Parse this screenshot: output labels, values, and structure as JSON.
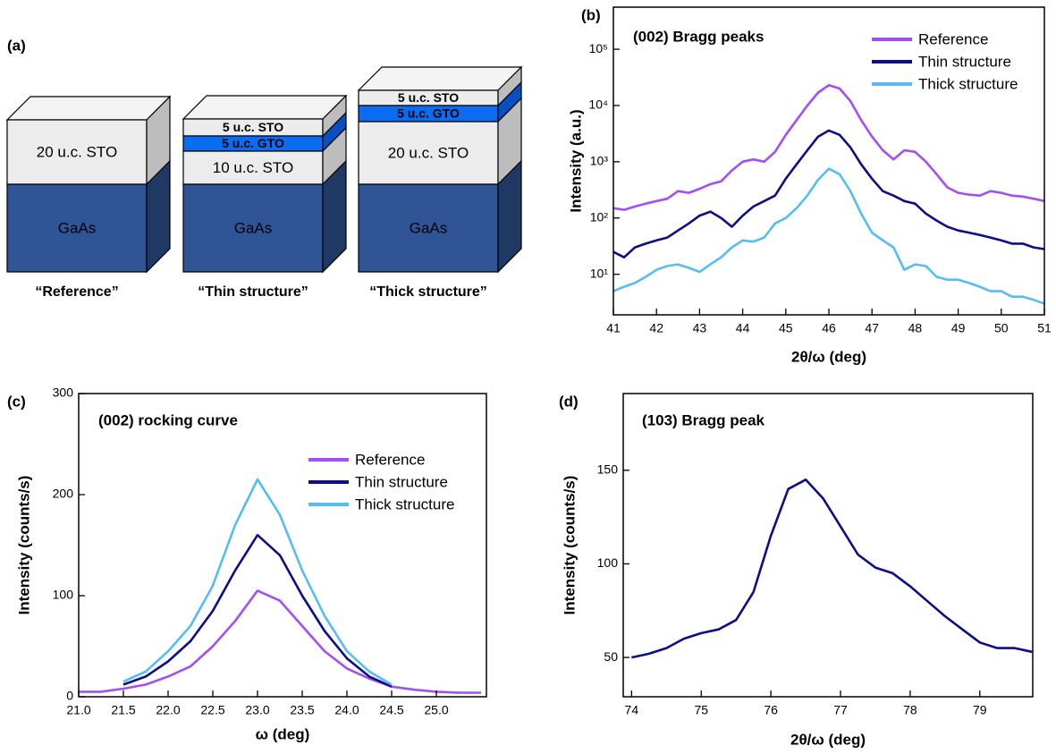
{
  "schematic": {
    "panel_label": "(a)",
    "samples": [
      {
        "layers": [
          "20 u.c. STO",
          "GaAs"
        ],
        "caption": "“Reference”"
      },
      {
        "layers": [
          "5 u.c. STO",
          "5 u.c. GTO",
          "10 u.c. STO",
          "GaAs"
        ],
        "caption": "“Thin structure”"
      },
      {
        "layers": [
          "5 u.c. STO",
          "5 u.c. GTO",
          "20 u.c. STO",
          "GaAs"
        ],
        "caption": "“Thick structure”"
      }
    ]
  },
  "chart_data": [
    {
      "type": "line",
      "panel_label": "(b)",
      "title": "(002) Bragg peaks",
      "x_label": "2θ/ω (deg)",
      "y_label": "Intensity (a.u.)",
      "log_y": true,
      "legend": "upper right",
      "x": [
        41,
        41.25,
        41.5,
        41.75,
        42,
        42.25,
        42.5,
        42.75,
        43,
        43.25,
        43.5,
        43.75,
        44,
        44.25,
        44.5,
        44.75,
        45,
        45.25,
        45.5,
        45.75,
        46,
        46.25,
        46.5,
        46.75,
        47,
        47.25,
        47.5,
        47.75,
        48,
        48.25,
        48.5,
        48.75,
        49,
        49.25,
        49.5,
        49.75,
        50,
        50.25,
        50.5,
        50.75,
        51
      ],
      "series": [
        {
          "name": "Reference",
          "color": "#a24ff5",
          "values": [
            150,
            140,
            160,
            180,
            200,
            220,
            300,
            280,
            330,
            400,
            450,
            700,
            1000,
            1100,
            1000,
            1500,
            3000,
            5500,
            10000,
            17000,
            23000,
            20000,
            12000,
            5500,
            2800,
            1600,
            1100,
            1600,
            1500,
            1000,
            600,
            350,
            280,
            260,
            250,
            300,
            280,
            250,
            240,
            220,
            200
          ]
        },
        {
          "name": "Thin structure",
          "color": "#0d0d8a",
          "values": [
            25,
            20,
            30,
            35,
            40,
            45,
            60,
            80,
            110,
            130,
            100,
            70,
            110,
            160,
            200,
            250,
            500,
            900,
            1600,
            2800,
            3600,
            3000,
            1800,
            900,
            500,
            300,
            250,
            200,
            180,
            120,
            90,
            70,
            60,
            55,
            50,
            45,
            40,
            35,
            35,
            30,
            28
          ]
        },
        {
          "name": "Thick structure",
          "color": "#55bdf5",
          "values": [
            5,
            6,
            7,
            9,
            12,
            14,
            15,
            13,
            11,
            15,
            20,
            30,
            40,
            38,
            45,
            80,
            100,
            150,
            250,
            480,
            750,
            600,
            300,
            120,
            55,
            40,
            30,
            12,
            15,
            14,
            9,
            8,
            8,
            7,
            6,
            5,
            5,
            4,
            4,
            3.5,
            3
          ]
        }
      ],
      "xlim": [
        41,
        51
      ],
      "xticks": [
        41,
        42,
        43,
        44,
        45,
        46,
        47,
        48,
        49,
        50,
        51
      ],
      "ylim": [
        1.9,
        560000
      ],
      "yticks": [
        {
          "value": 10,
          "label": "10¹"
        },
        {
          "value": 100,
          "label": "10²"
        },
        {
          "value": 1000,
          "label": "10³"
        },
        {
          "value": 10000,
          "label": "10⁴"
        },
        {
          "value": 100000,
          "label": "10⁵"
        }
      ]
    },
    {
      "type": "line",
      "panel_label": "(c)",
      "title": "(002) rocking curve",
      "x_label": "ω (deg)",
      "y_label": "Intensity (counts/s)",
      "log_y": false,
      "legend": "upper right",
      "x": [
        21,
        21.25,
        21.5,
        21.75,
        22,
        22.25,
        22.5,
        22.75,
        23,
        23.25,
        23.5,
        23.75,
        24,
        24.25,
        24.5,
        24.75,
        25,
        25.25,
        25.5
      ],
      "series": [
        {
          "name": "Reference",
          "color": "#a24ff5",
          "values": [
            5,
            5,
            8,
            12,
            20,
            30,
            50,
            75,
            105,
            95,
            70,
            45,
            28,
            18,
            10,
            7,
            5,
            4,
            4
          ]
        },
        {
          "name": "Thin structure",
          "color": "#0d0d8a",
          "values": [
            null,
            null,
            12,
            20,
            35,
            55,
            85,
            125,
            160,
            140,
            100,
            65,
            38,
            20,
            10,
            null,
            null,
            null,
            null
          ]
        },
        {
          "name": "Thick structure",
          "color": "#55bdf5",
          "values": [
            null,
            null,
            15,
            25,
            45,
            70,
            110,
            170,
            215,
            180,
            125,
            80,
            45,
            25,
            12,
            null,
            null,
            null,
            null
          ]
        }
      ],
      "xlim": [
        21,
        25.56
      ],
      "xticks": [
        {
          "value": 21,
          "label": "21.0"
        },
        21.5,
        {
          "value": 22,
          "label": "22.0"
        },
        22.5,
        {
          "value": 23,
          "label": "23.0"
        },
        23.5,
        {
          "value": 24,
          "label": "24.0"
        },
        24.5,
        {
          "value": 25,
          "label": "25.0"
        }
      ],
      "ylim": [
        0,
        300
      ],
      "yticks": [
        0,
        100,
        200,
        300
      ]
    },
    {
      "type": "line",
      "panel_label": "(d)",
      "title": "(103) Bragg peak",
      "x_label": "2θ/ω (deg)",
      "y_label": "Intensity (counts/s)",
      "log_y": false,
      "color": "#0d0d8a",
      "x": [
        74,
        74.25,
        74.5,
        74.75,
        75,
        75.25,
        75.5,
        75.75,
        76,
        76.25,
        76.5,
        76.75,
        77,
        77.25,
        77.5,
        77.75,
        78,
        78.25,
        78.5,
        78.75,
        79,
        79.25,
        79.5,
        79.75
      ],
      "values": [
        50,
        52,
        55,
        60,
        63,
        65,
        70,
        85,
        115,
        140,
        145,
        135,
        120,
        105,
        98,
        95,
        88,
        80,
        72,
        65,
        58,
        55,
        55,
        53
      ],
      "xlim": [
        73.88,
        79.76
      ],
      "xticks": [
        74,
        75,
        76,
        77,
        78,
        79
      ],
      "ylim": [
        29,
        191
      ],
      "yticks": [
        50,
        100,
        150
      ]
    }
  ]
}
